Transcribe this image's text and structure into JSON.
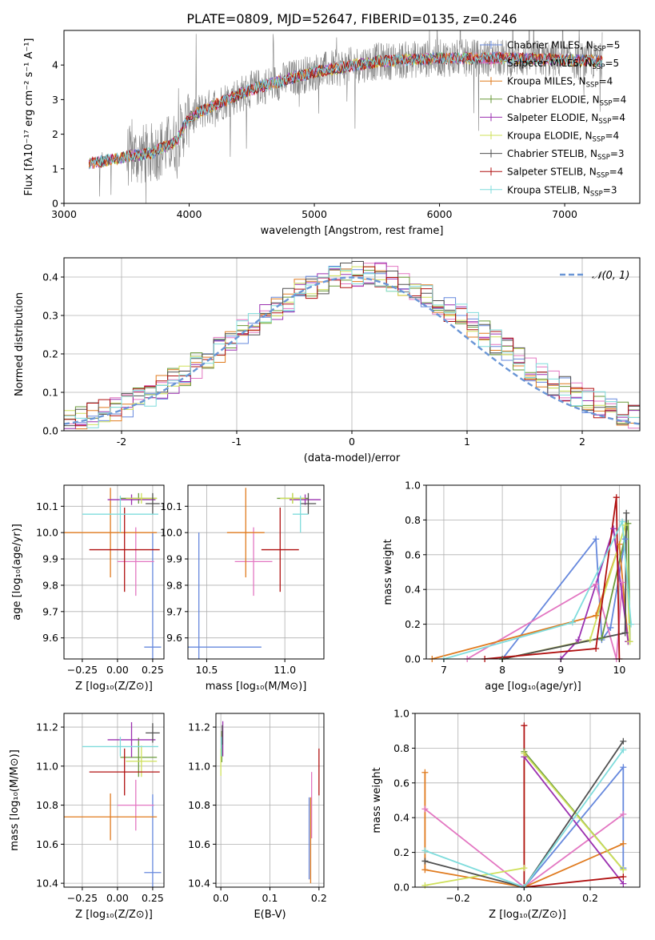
{
  "figure": {
    "title": "PLATE=0809, MJD=52647, FIBERID=0135, z=0.246"
  },
  "colors": {
    "Chabrier MILES": "#6688dd",
    "Salpeter MILES": "#e377c2",
    "Kroupa MILES": "#e07b1f",
    "Chabrier ELODIE": "#6a9a3a",
    "Salpeter ELODIE": "#9b30b0",
    "Kroupa ELODIE": "#cfe05a",
    "Chabrier STELIB": "#505050",
    "Salpeter STELIB": "#b01010",
    "Kroupa STELIB": "#7fdcdc",
    "data": "#808080",
    "normal": "#6a96d6"
  },
  "chart_data": [
    {
      "id": "spectrum",
      "type": "line",
      "xlabel": "wavelength [Angstrom, rest frame]",
      "ylabel": "Flux [fλ10⁻¹⁷ erg cm⁻² s⁻¹ A⁻¹]",
      "xlim": [
        3000,
        7600
      ],
      "ylim": [
        0,
        5
      ],
      "xticks": [
        3000,
        4000,
        5000,
        6000,
        7000
      ],
      "yticks": [
        0,
        1,
        2,
        3,
        4
      ],
      "grid": false,
      "legend_position": "top-right",
      "legend": [
        "Chabrier MILES, N_SSP=5",
        "Salpeter MILES, N_SSP=5",
        "Kroupa MILES, N_SSP=4",
        "Chabrier ELODIE, N_SSP=4",
        "Salpeter ELODIE, N_SSP=4",
        "Kroupa ELODIE, N_SSP=4",
        "Chabrier STELIB, N_SSP=3",
        "Salpeter STELIB, N_SSP=4",
        "Kroupa STELIB, N_SSP=3"
      ],
      "continuum": [
        [
          3200,
          1.15
        ],
        [
          3500,
          1.35
        ],
        [
          3700,
          1.45
        ],
        [
          3900,
          1.8
        ],
        [
          4000,
          2.5
        ],
        [
          4300,
          3.0
        ],
        [
          4500,
          3.3
        ],
        [
          5000,
          3.8
        ],
        [
          5500,
          4.1
        ],
        [
          6000,
          4.2
        ],
        [
          6500,
          4.2
        ],
        [
          7000,
          4.15
        ],
        [
          7300,
          4.1
        ]
      ]
    },
    {
      "id": "residuals",
      "type": "histogram",
      "xlabel": "(data-model)/error",
      "ylabel": "Normed distribution",
      "xlim": [
        -2.5,
        2.5
      ],
      "ylim": [
        0,
        0.45
      ],
      "xticks": [
        -2,
        -1,
        0,
        1,
        2
      ],
      "yticks": [
        0.0,
        0.1,
        0.2,
        0.3,
        0.4
      ],
      "grid": true,
      "legend": [
        "𝒩(0, 1)"
      ],
      "legend_position": "top-right",
      "bins": [
        -2.5,
        2.5,
        50
      ],
      "curve": "standard normal pdf"
    },
    {
      "id": "age_vs_Z",
      "type": "errorbar",
      "xlabel": "Z [log₁₀(Z/Z⊙)]",
      "ylabel": "age  [log₁₀(age/yr)]",
      "xlim": [
        -0.38,
        0.33
      ],
      "ylim": [
        9.52,
        10.18
      ],
      "xticks": [
        -0.25,
        0.0,
        0.25
      ],
      "xticklabels": [
        "−0.25",
        "0.00",
        "0.25"
      ],
      "yticks": [
        9.6,
        9.7,
        9.8,
        9.9,
        10.0,
        10.1
      ],
      "grid": true,
      "series": [
        {
          "name": "Chabrier MILES",
          "x": 0.25,
          "xerr": 0.06,
          "y": 9.565,
          "yerr": 0.435
        },
        {
          "name": "Salpeter MILES",
          "x": 0.13,
          "xerr": 0.13,
          "y": 9.89,
          "yerr": 0.13
        },
        {
          "name": "Kroupa MILES",
          "x": -0.05,
          "xerr": 0.33,
          "y": 10.0,
          "yerr": 0.17
        },
        {
          "name": "Chabrier ELODIE",
          "x": 0.15,
          "xerr": 0.13,
          "y": 10.13,
          "yerr": 0.02
        },
        {
          "name": "Salpeter ELODIE",
          "x": 0.1,
          "xerr": 0.17,
          "y": 10.125,
          "yerr": 0.02
        },
        {
          "name": "Kroupa ELODIE",
          "x": 0.17,
          "xerr": 0.11,
          "y": 10.13,
          "yerr": 0.02
        },
        {
          "name": "Chabrier STELIB",
          "x": 0.25,
          "xerr": 0.05,
          "y": 10.11,
          "yerr": 0.04
        },
        {
          "name": "Salpeter STELIB",
          "x": 0.05,
          "xerr": 0.25,
          "y": 9.935,
          "yerr": 0.16
        },
        {
          "name": "Kroupa STELIB",
          "x": 0.02,
          "xerr": 0.27,
          "y": 10.07,
          "yerr": 0.07
        }
      ]
    },
    {
      "id": "age_vs_mass",
      "type": "errorbar",
      "xlabel": "mass [log₁₀(M/M⊙)]",
      "xlim": [
        10.38,
        11.25
      ],
      "ylim": [
        9.52,
        10.18
      ],
      "xticks": [
        10.5,
        11.0
      ],
      "xticklabels": [
        "10.5",
        "11.0"
      ],
      "yticks": [
        9.6,
        9.7,
        9.8,
        9.9,
        10.0,
        10.1
      ],
      "grid": true,
      "series": [
        {
          "name": "Chabrier MILES",
          "x": 10.45,
          "xerr": 0.4,
          "y": 9.565,
          "yerr": 0.435
        },
        {
          "name": "Salpeter MILES",
          "x": 10.8,
          "xerr": 0.12,
          "y": 9.89,
          "yerr": 0.13
        },
        {
          "name": "Kroupa MILES",
          "x": 10.75,
          "xerr": 0.12,
          "y": 10.0,
          "yerr": 0.17
        },
        {
          "name": "Chabrier ELODIE",
          "x": 11.05,
          "xerr": 0.1,
          "y": 10.13,
          "yerr": 0.02
        },
        {
          "name": "Salpeter ELODIE",
          "x": 11.13,
          "xerr": 0.1,
          "y": 10.125,
          "yerr": 0.02
        },
        {
          "name": "Kroupa ELODIE",
          "x": 11.05,
          "xerr": 0.08,
          "y": 10.13,
          "yerr": 0.02
        },
        {
          "name": "Chabrier STELIB",
          "x": 11.15,
          "xerr": 0.05,
          "y": 10.11,
          "yerr": 0.04
        },
        {
          "name": "Salpeter STELIB",
          "x": 10.97,
          "xerr": 0.12,
          "y": 9.935,
          "yerr": 0.16
        },
        {
          "name": "Kroupa STELIB",
          "x": 11.1,
          "xerr": 0.05,
          "y": 10.07,
          "yerr": 0.07
        }
      ]
    },
    {
      "id": "weight_vs_age",
      "type": "line",
      "xlabel": "age  [log₁₀(age/yr)]",
      "ylabel": "mass weight",
      "xlim": [
        6.7,
        10.35
      ],
      "ylim": [
        0,
        1
      ],
      "xticks": [
        7,
        8,
        9,
        10
      ],
      "yticks": [
        0.0,
        0.2,
        0.4,
        0.6,
        0.8,
        1.0
      ],
      "grid": true,
      "series": [
        {
          "name": "Chabrier MILES",
          "x": [
            8.0,
            9.6,
            9.7,
            9.85,
            10.1
          ],
          "y": [
            0.0,
            0.69,
            0.11,
            0.18,
            0.69
          ]
        },
        {
          "name": "Salpeter MILES",
          "x": [
            7.4,
            9.6,
            9.95,
            10.05,
            10.15
          ],
          "y": [
            0.0,
            0.43,
            0.0,
            0.44,
            0.1
          ]
        },
        {
          "name": "Kroupa MILES",
          "x": [
            6.8,
            9.6,
            10.0,
            10.15
          ],
          "y": [
            0.0,
            0.25,
            0.66,
            0.1
          ]
        },
        {
          "name": "Chabrier ELODIE",
          "x": [
            8.0,
            9.7,
            10.15,
            10.18
          ],
          "y": [
            0.0,
            0.12,
            0.78,
            0.1
          ]
        },
        {
          "name": "Salpeter ELODIE",
          "x": [
            9.0,
            9.3,
            9.9,
            10.15
          ],
          "y": [
            0.0,
            0.11,
            0.75,
            0.1
          ]
        },
        {
          "name": "Kroupa ELODIE",
          "x": [
            8.0,
            9.5,
            10.1,
            10.18
          ],
          "y": [
            0.0,
            0.11,
            0.77,
            0.1
          ]
        },
        {
          "name": "Chabrier STELIB",
          "x": [
            8.0,
            10.1,
            10.12
          ],
          "y": [
            0.0,
            0.15,
            0.84
          ]
        },
        {
          "name": "Salpeter STELIB",
          "x": [
            7.7,
            9.6,
            9.95,
            10.0
          ],
          "y": [
            0.0,
            0.06,
            0.93,
            0.0
          ]
        },
        {
          "name": "Kroupa STELIB",
          "x": [
            7.0,
            9.2,
            10.05,
            10.2
          ],
          "y": [
            0.0,
            0.21,
            0.79,
            0.2
          ]
        }
      ]
    },
    {
      "id": "mass_vs_Z",
      "type": "errorbar",
      "xlabel": "Z [log₁₀(Z/Z⊙)]",
      "ylabel": "mass [log₁₀(M/M⊙)]",
      "xlim": [
        -0.38,
        0.33
      ],
      "ylim": [
        10.38,
        11.27
      ],
      "xticks": [
        -0.25,
        0.0,
        0.25
      ],
      "xticklabels": [
        "−0.25",
        "0.00",
        "0.25"
      ],
      "yticks": [
        10.4,
        10.6,
        10.8,
        11.0,
        11.2
      ],
      "grid": true,
      "series": [
        {
          "name": "Chabrier MILES",
          "x": 0.25,
          "xerr": 0.06,
          "y": 10.455,
          "yerr": 0.4
        },
        {
          "name": "Salpeter MILES",
          "x": 0.13,
          "xerr": 0.13,
          "y": 10.8,
          "yerr": 0.13
        },
        {
          "name": "Kroupa MILES",
          "x": -0.05,
          "xerr": 0.33,
          "y": 10.74,
          "yerr": 0.12
        },
        {
          "name": "Chabrier ELODIE",
          "x": 0.15,
          "xerr": 0.13,
          "y": 11.045,
          "yerr": 0.1
        },
        {
          "name": "Salpeter ELODIE",
          "x": 0.1,
          "xerr": 0.17,
          "y": 11.135,
          "yerr": 0.09
        },
        {
          "name": "Kroupa ELODIE",
          "x": 0.17,
          "xerr": 0.11,
          "y": 11.025,
          "yerr": 0.08
        },
        {
          "name": "Chabrier STELIB",
          "x": 0.25,
          "xerr": 0.05,
          "y": 11.17,
          "yerr": 0.05
        },
        {
          "name": "Salpeter STELIB",
          "x": 0.05,
          "xerr": 0.25,
          "y": 10.97,
          "yerr": 0.12
        },
        {
          "name": "Kroupa STELIB",
          "x": 0.02,
          "xerr": 0.27,
          "y": 11.1,
          "yerr": 0.05
        }
      ]
    },
    {
      "id": "mass_vs_EBV",
      "type": "errorbar",
      "xlabel": "E(B-V)",
      "xlim": [
        -0.01,
        0.21
      ],
      "ylim": [
        10.38,
        11.27
      ],
      "xticks": [
        0.0,
        0.1,
        0.2
      ],
      "xticklabels": [
        "0.0",
        "0.1",
        "0.2"
      ],
      "yticks": [
        10.4,
        10.6,
        10.8,
        11.0,
        11.2
      ],
      "grid": true,
      "series": [
        {
          "name": "Chabrier MILES",
          "x": 0.18,
          "xerr": 0,
          "y": 10.63,
          "yerr": 0.21
        },
        {
          "name": "Salpeter MILES",
          "x": 0.185,
          "xerr": 0,
          "y": 10.8,
          "yerr": 0.17
        },
        {
          "name": "Kroupa MILES",
          "x": 0.183,
          "xerr": 0,
          "y": 10.62,
          "yerr": 0.22
        },
        {
          "name": "Chabrier ELODIE",
          "x": 0.002,
          "xerr": 0,
          "y": 11.1,
          "yerr": 0.08
        },
        {
          "name": "Salpeter ELODIE",
          "x": 0.004,
          "xerr": 0,
          "y": 11.14,
          "yerr": 0.09
        },
        {
          "name": "Kroupa ELODIE",
          "x": 0.0,
          "xerr": 0,
          "y": 11.02,
          "yerr": 0.07
        },
        {
          "name": "Chabrier STELIB",
          "x": 0.003,
          "xerr": 0,
          "y": 11.16,
          "yerr": 0.05
        },
        {
          "name": "Salpeter STELIB",
          "x": 0.2,
          "xerr": 0,
          "y": 10.97,
          "yerr": 0.12
        },
        {
          "name": "Kroupa STELIB",
          "x": 0.001,
          "xerr": 0,
          "y": 11.1,
          "yerr": 0.05
        }
      ]
    },
    {
      "id": "weight_vs_Z",
      "type": "line",
      "xlabel": "Z [log₁₀(Z/Z⊙)]",
      "ylabel": "mass weight",
      "xlim": [
        -0.33,
        0.35
      ],
      "ylim": [
        0,
        1
      ],
      "xticks": [
        -0.2,
        0.0,
        0.2
      ],
      "xticklabels": [
        "−0.2",
        "0.0",
        "0.2"
      ],
      "yticks": [
        0.0,
        0.2,
        0.4,
        0.6,
        0.8,
        1.0
      ],
      "grid": true,
      "series": [
        {
          "name": "Chabrier MILES",
          "x": [
            0.0,
            0.3,
            0.3
          ],
          "y": [
            0.0,
            0.69,
            0.11
          ]
        },
        {
          "name": "Salpeter MILES",
          "x": [
            -0.3,
            0.0,
            0.3
          ],
          "y": [
            0.45,
            0.0,
            0.42
          ]
        },
        {
          "name": "Kroupa MILES",
          "x": [
            -0.3,
            -0.3,
            0.0,
            0.3
          ],
          "y": [
            0.66,
            0.1,
            0.0,
            0.25
          ]
        },
        {
          "name": "Chabrier ELODIE",
          "x": [
            0.0,
            0.3
          ],
          "y": [
            0.78,
            0.1
          ]
        },
        {
          "name": "Salpeter ELODIE",
          "x": [
            0.0,
            0.3
          ],
          "y": [
            0.75,
            0.02
          ]
        },
        {
          "name": "Kroupa ELODIE",
          "x": [
            -0.3,
            0.0,
            0.0,
            0.3
          ],
          "y": [
            0.01,
            0.11,
            0.77,
            0.1
          ]
        },
        {
          "name": "Chabrier STELIB",
          "x": [
            -0.3,
            0.0,
            0.3
          ],
          "y": [
            0.15,
            0.0,
            0.84
          ]
        },
        {
          "name": "Salpeter STELIB",
          "x": [
            0.0,
            0.0,
            0.3
          ],
          "y": [
            0.93,
            0.0,
            0.06
          ]
        },
        {
          "name": "Kroupa STELIB",
          "x": [
            -0.3,
            0.0,
            0.3
          ],
          "y": [
            0.21,
            0.0,
            0.79
          ]
        }
      ]
    }
  ]
}
